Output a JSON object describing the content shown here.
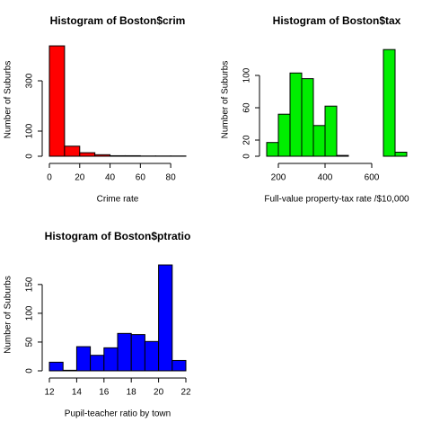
{
  "chart_data": [
    {
      "type": "histogram",
      "title": "Histogram of Boston$crim",
      "x_label": "Crime rate",
      "y_label": "Number of Suburbs",
      "bins": [
        0,
        10,
        20,
        30,
        40,
        50,
        60,
        70,
        80,
        90
      ],
      "values": [
        439,
        40,
        14,
        6,
        2,
        2,
        1,
        1,
        1
      ],
      "color": "#ff0000",
      "xlim": [
        0,
        90
      ],
      "xticks": [
        0,
        20,
        40,
        60,
        80
      ],
      "ylim": [
        0,
        450
      ],
      "yticks": [
        0,
        100,
        300
      ]
    },
    {
      "type": "histogram",
      "title": "Histogram of Boston$tax",
      "x_label": "Full-value property-tax rate /$10,000",
      "y_label": "Number of Suburbs",
      "bins": [
        150,
        200,
        250,
        300,
        350,
        400,
        450,
        500,
        550,
        600,
        650,
        700,
        750
      ],
      "values": [
        17,
        52,
        103,
        96,
        38,
        62,
        1,
        0,
        0,
        0,
        132,
        5
      ],
      "color": "#00ee00",
      "xlim": [
        150,
        750
      ],
      "xticks": [
        200,
        400,
        600
      ],
      "ylim": [
        0,
        140
      ],
      "yticks": [
        0,
        20,
        60,
        100
      ]
    },
    {
      "type": "histogram",
      "title": "Histogram of Boston$ptratio",
      "x_label": "Pupil-teacher ratio by town",
      "y_label": "Number of Suburbs",
      "bins": [
        12,
        13,
        14,
        15,
        16,
        17,
        18,
        19,
        20,
        21,
        22
      ],
      "values": [
        15,
        1,
        42,
        27,
        40,
        65,
        63,
        51,
        184,
        18
      ],
      "color": "#0000ff",
      "xlim": [
        12,
        22
      ],
      "xticks": [
        12,
        14,
        16,
        18,
        20,
        22
      ],
      "ylim": [
        0,
        195
      ],
      "yticks": [
        0,
        50,
        100,
        150
      ]
    }
  ]
}
